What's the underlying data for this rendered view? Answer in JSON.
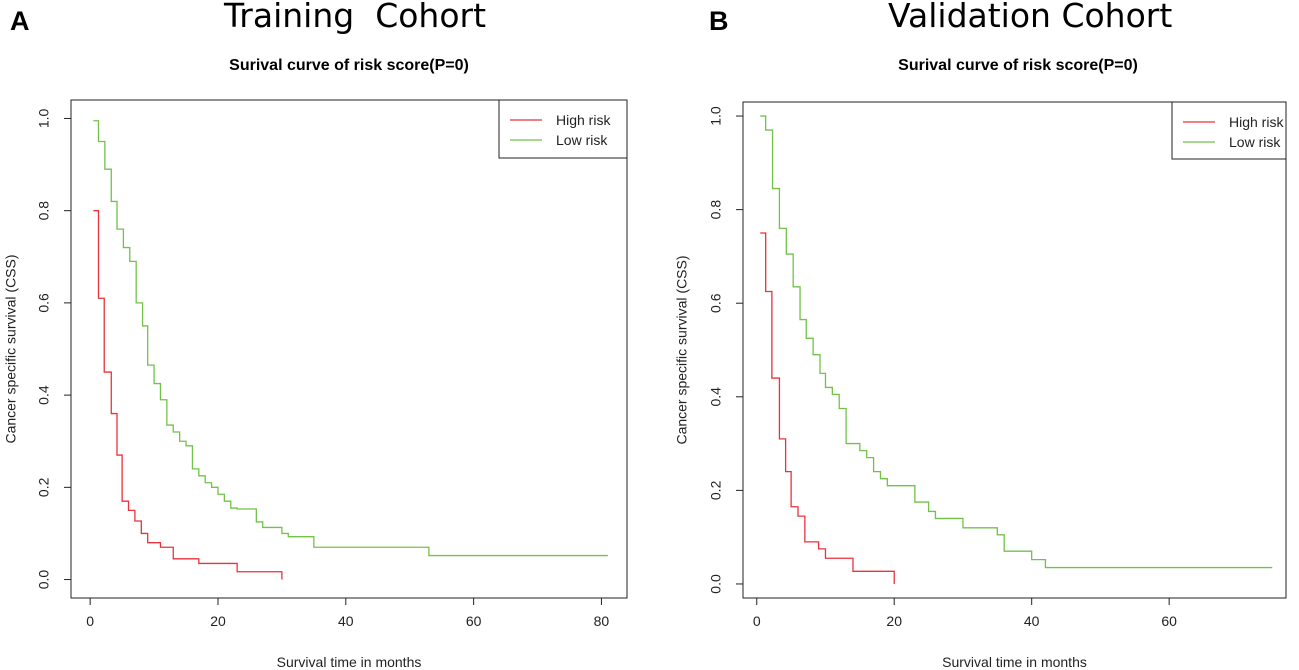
{
  "panels": [
    {
      "letter": "A",
      "heading": "Training  Cohort"
    },
    {
      "letter": "B",
      "heading": "Validation Cohort"
    }
  ],
  "chart_data": [
    {
      "type": "line",
      "step": true,
      "title": "Surival curve of risk score(P=0)",
      "xlabel": "Survival time in months",
      "ylabel": "Cancer specific survival (CSS)",
      "xlim": [
        -3,
        84
      ],
      "ylim": [
        -0.04,
        1.04
      ],
      "xticks": [
        0,
        20,
        40,
        60,
        80
      ],
      "yticks": [
        0.0,
        0.2,
        0.4,
        0.6,
        0.8,
        1.0
      ],
      "ytick_labels": [
        "0.0",
        "0.2",
        "0.4",
        "0.6",
        "0.8",
        "1.0"
      ],
      "legend": {
        "position": "top-right",
        "entries": [
          "High risk",
          "Low risk"
        ]
      },
      "series": [
        {
          "name": "High risk",
          "color": "#e8323c",
          "x": [
            0.5,
            1.3,
            2.2,
            3.3,
            4.2,
            5,
            6,
            7,
            8,
            9,
            11,
            13,
            17,
            23,
            30,
            30
          ],
          "y": [
            0.8,
            0.61,
            0.45,
            0.36,
            0.27,
            0.17,
            0.15,
            0.127,
            0.1,
            0.08,
            0.07,
            0.045,
            0.035,
            0.017,
            0.017,
            0.0
          ]
        },
        {
          "name": "Low risk",
          "color": "#72c24a",
          "x": [
            0.5,
            1.3,
            2.3,
            3.3,
            4.2,
            5.2,
            6.2,
            7.2,
            8.2,
            9,
            10,
            11,
            12,
            13,
            14,
            15,
            16,
            17,
            18,
            19,
            20,
            21,
            22,
            23,
            26,
            27,
            30,
            31,
            35,
            53,
            81
          ],
          "y": [
            0.995,
            0.95,
            0.89,
            0.82,
            0.76,
            0.72,
            0.69,
            0.6,
            0.55,
            0.465,
            0.425,
            0.39,
            0.335,
            0.32,
            0.3,
            0.29,
            0.24,
            0.225,
            0.21,
            0.2,
            0.185,
            0.17,
            0.155,
            0.153,
            0.125,
            0.113,
            0.1,
            0.093,
            0.07,
            0.052,
            0.052
          ]
        }
      ]
    },
    {
      "type": "line",
      "step": true,
      "title": "Surival curve of risk score(P=0)",
      "xlabel": "Survival time in months",
      "ylabel": "Cancer specific survival (CSS)",
      "xlim": [
        -2,
        77
      ],
      "ylim": [
        -0.03,
        1.03
      ],
      "xticks": [
        0,
        20,
        40,
        60
      ],
      "yticks": [
        0.0,
        0.2,
        0.4,
        0.6,
        0.8,
        1.0
      ],
      "ytick_labels": [
        "0.0",
        "0.2",
        "0.4",
        "0.6",
        "0.8",
        "1.0"
      ],
      "legend": {
        "position": "top-right",
        "entries": [
          "High risk",
          "Low risk"
        ]
      },
      "series": [
        {
          "name": "High risk",
          "color": "#e8323c",
          "x": [
            0.5,
            1.3,
            2.2,
            3.3,
            4.2,
            5,
            6,
            7,
            9,
            10,
            14,
            20,
            20
          ],
          "y": [
            0.75,
            0.625,
            0.44,
            0.31,
            0.24,
            0.165,
            0.145,
            0.09,
            0.075,
            0.055,
            0.027,
            0.027,
            0.0
          ]
        },
        {
          "name": "Low risk",
          "color": "#72c24a",
          "x": [
            0.5,
            1.3,
            2.3,
            3.3,
            4.3,
            5.3,
            6.3,
            7.2,
            8.2,
            9.2,
            10,
            11,
            12,
            13,
            15,
            16,
            17,
            18,
            19,
            20,
            23,
            25,
            26,
            30,
            35,
            36,
            40,
            42,
            75
          ],
          "y": [
            1.0,
            0.97,
            0.845,
            0.76,
            0.705,
            0.635,
            0.565,
            0.525,
            0.49,
            0.45,
            0.42,
            0.405,
            0.375,
            0.3,
            0.285,
            0.27,
            0.24,
            0.225,
            0.21,
            0.21,
            0.175,
            0.155,
            0.14,
            0.12,
            0.105,
            0.07,
            0.052,
            0.035,
            0.035
          ]
        }
      ]
    }
  ]
}
